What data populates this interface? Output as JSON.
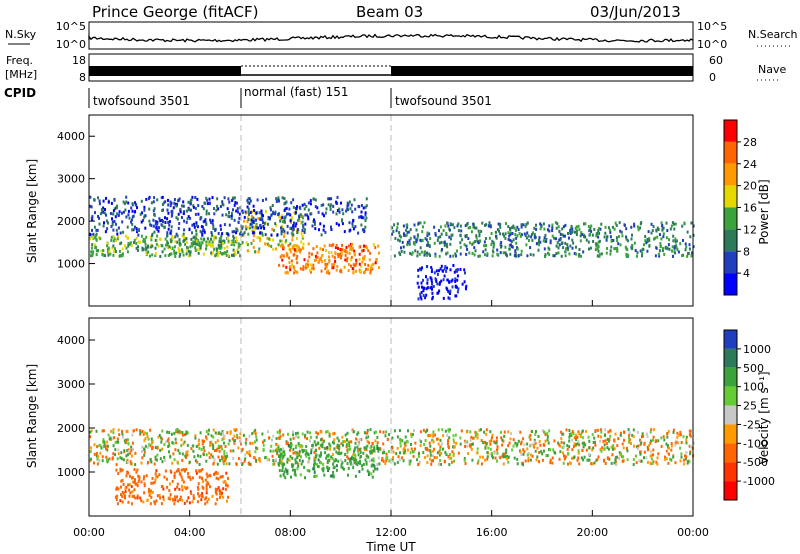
{
  "header": {
    "station": "Prince George (fitACF)",
    "beam": "Beam 03",
    "date": "03/Jun/2013"
  },
  "noise_panel": {
    "left_label": "N.Sky",
    "right_label": "N.Search",
    "left_ticks": [
      "10^5",
      "10^0"
    ],
    "right_ticks": [
      "10^5",
      "10^0"
    ]
  },
  "freq_panel": {
    "left_label_1": "Freq.",
    "left_label_2": "[MHz]",
    "right_label": "Nave",
    "left_ticks": [
      "18",
      "8"
    ],
    "right_ticks": [
      "60",
      "0"
    ]
  },
  "cpid": {
    "label": "CPID",
    "segments": [
      {
        "name": "twofsound 3501",
        "start_hour": 0,
        "end_hour": 6
      },
      {
        "name": "normal (fast) 151",
        "start_hour": 6,
        "end_hour": 12
      },
      {
        "name": "twofsound 3501",
        "start_hour": 12,
        "end_hour": 24
      }
    ]
  },
  "x_axis": {
    "label": "Time UT",
    "tick_labels": [
      "00:00",
      "04:00",
      "08:00",
      "12:00",
      "16:00",
      "20:00",
      "00:00"
    ]
  },
  "chart_data": [
    {
      "type": "heatmap",
      "name": "power",
      "ylabel": "Slant Range [km]",
      "x_range_hours": [
        0,
        24
      ],
      "ylim": [
        0,
        4500
      ],
      "y_ticks": [
        1000,
        2000,
        3000,
        4000
      ],
      "colorbar": {
        "label": "Power [dB]",
        "tick_labels": [
          "28",
          "24",
          "20",
          "16",
          "12",
          "8",
          "4"
        ],
        "colors": [
          "#ff0000",
          "#ff6600",
          "#ff9a00",
          "#e5d800",
          "#3aa33a",
          "#2d7a5a",
          "#1f3fbf",
          "#0000ff"
        ]
      },
      "bands": [
        {
          "h0": 0.0,
          "h1": 6.0,
          "r0": 1200,
          "r1": 1700,
          "level": 16
        },
        {
          "h0": 6.0,
          "h1": 8.5,
          "r0": 1300,
          "r1": 2300,
          "level": 20
        },
        {
          "h0": 7.5,
          "h1": 11.5,
          "r0": 800,
          "r1": 1500,
          "level": 26
        },
        {
          "h0": 12.0,
          "h1": 24.0,
          "r0": 1200,
          "r1": 2000,
          "level": 12
        },
        {
          "h0": 0.0,
          "h1": 11.0,
          "r0": 1700,
          "r1": 2600,
          "level": 8
        },
        {
          "h0": 13.0,
          "h1": 15.0,
          "r0": 200,
          "r1": 1000,
          "level": 4
        }
      ]
    },
    {
      "type": "heatmap",
      "name": "velocity",
      "ylabel": "Slant Range [km]",
      "x_range_hours": [
        0,
        24
      ],
      "ylim": [
        0,
        4500
      ],
      "y_ticks": [
        1000,
        2000,
        3000,
        4000
      ],
      "colorbar": {
        "label": "Velocity [m s⁻¹]",
        "tick_labels": [
          "1000",
          "500",
          "100",
          "25",
          "-25",
          "-100",
          "-500",
          "-1000"
        ],
        "colors": [
          "#1f3fbf",
          "#2d7a5a",
          "#3aa33a",
          "#66cc33",
          "#c8c8c8",
          "#ff9a00",
          "#ff6600",
          "#ff3300",
          "#ff0000"
        ]
      },
      "bands": [
        {
          "h0": 0.0,
          "h1": 24.0,
          "r0": 1200,
          "r1": 2000,
          "level": 0
        },
        {
          "h0": 7.5,
          "h1": 11.5,
          "r0": 900,
          "r1": 1700,
          "level": 300
        },
        {
          "h0": 1.0,
          "h1": 5.5,
          "r0": 300,
          "r1": 1100,
          "level": -300
        }
      ]
    }
  ]
}
